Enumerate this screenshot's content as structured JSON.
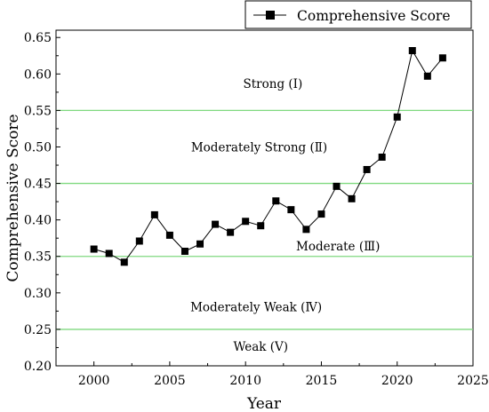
{
  "chart_data": {
    "type": "line",
    "title": "",
    "xlabel": "Year",
    "ylabel": "Comprehensive Score",
    "xlim": [
      1997.5,
      2025
    ],
    "ylim": [
      0.2,
      0.66
    ],
    "xticks": [
      2000,
      2005,
      2010,
      2015,
      2020,
      2025
    ],
    "xtick_labels": [
      "2000",
      "2005",
      "2010",
      "2015",
      "2020",
      "2025"
    ],
    "yticks": [
      0.2,
      0.25,
      0.3,
      0.35,
      0.4,
      0.45,
      0.5,
      0.55,
      0.6,
      0.65
    ],
    "ytick_labels": [
      "0.20",
      "0.25",
      "0.30",
      "0.35",
      "0.40",
      "0.45",
      "0.50",
      "0.55",
      "0.60",
      "0.65"
    ],
    "grid": false,
    "legend_position": "top-right",
    "series": [
      {
        "name": "Comprehensive Score",
        "marker": "square",
        "color": "#000000",
        "x": [
          2000,
          2001,
          2002,
          2003,
          2004,
          2005,
          2006,
          2007,
          2008,
          2009,
          2010,
          2011,
          2012,
          2013,
          2014,
          2015,
          2016,
          2017,
          2018,
          2019,
          2020,
          2021,
          2022,
          2023
        ],
        "y": [
          0.36,
          0.354,
          0.342,
          0.371,
          0.407,
          0.379,
          0.357,
          0.367,
          0.394,
          0.383,
          0.398,
          0.392,
          0.426,
          0.414,
          0.387,
          0.408,
          0.446,
          0.429,
          0.469,
          0.486,
          0.541,
          0.632,
          0.597,
          0.622
        ]
      }
    ],
    "reference_lines": {
      "color": "#7fd97f",
      "y": [
        0.25,
        0.35,
        0.45,
        0.55
      ]
    },
    "zone_labels": [
      {
        "text": "Strong (Ⅰ)",
        "x": 2011.8,
        "y": 0.587
      },
      {
        "text": "Moderately Strong (Ⅱ)",
        "x": 2010.9,
        "y": 0.5
      },
      {
        "text": "Moderate (Ⅲ)",
        "x": 2016.1,
        "y": 0.364
      },
      {
        "text": "Moderately Weak (Ⅳ)",
        "x": 2010.7,
        "y": 0.281
      },
      {
        "text": "Weak (Ⅴ)",
        "x": 2011.0,
        "y": 0.227
      }
    ]
  }
}
